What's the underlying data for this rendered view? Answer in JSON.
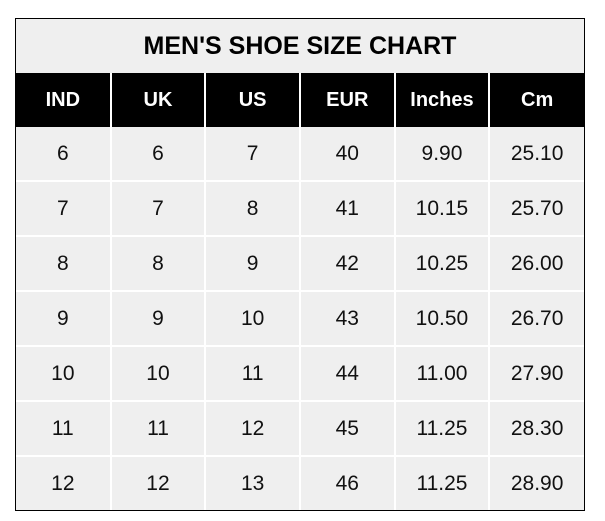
{
  "title": "MEN'S SHOE SIZE CHART",
  "headers": [
    "IND",
    "UK",
    "US",
    "EUR",
    "Inches",
    "Cm"
  ],
  "rows": [
    [
      "6",
      "6",
      "7",
      "40",
      "9.90",
      "25.10"
    ],
    [
      "7",
      "7",
      "8",
      "41",
      "10.15",
      "25.70"
    ],
    [
      "8",
      "8",
      "9",
      "42",
      "10.25",
      "26.00"
    ],
    [
      "9",
      "9",
      "10",
      "43",
      "10.50",
      "26.70"
    ],
    [
      "10",
      "10",
      "11",
      "44",
      "11.00",
      "27.90"
    ],
    [
      "11",
      "11",
      "12",
      "45",
      "11.25",
      "28.30"
    ],
    [
      "12",
      "12",
      "13",
      "46",
      "11.25",
      "28.90"
    ]
  ],
  "colors": {
    "header_bg": "#000000",
    "header_text": "#ffffff",
    "cell_bg": "#efefef",
    "grid": "#ffffff"
  }
}
